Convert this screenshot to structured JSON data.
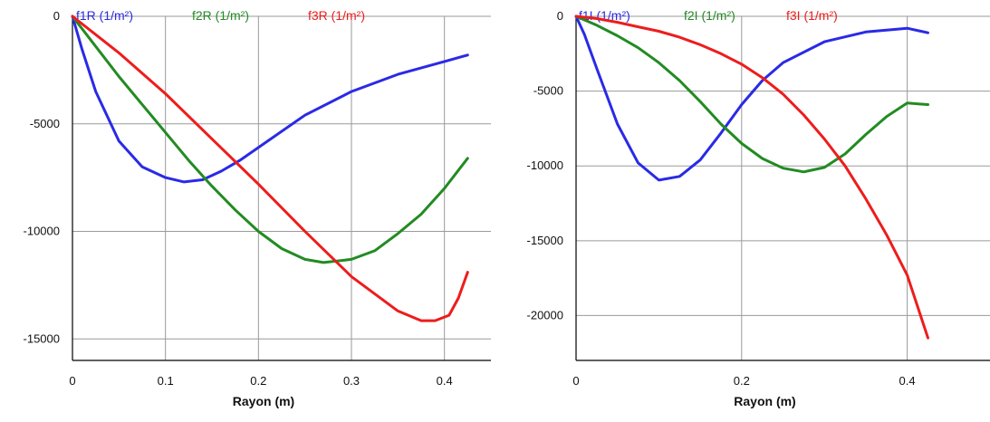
{
  "chart_data": [
    {
      "type": "line",
      "xlabel": "Rayon (m)",
      "ylabel": "",
      "xlim": [
        0,
        0.45
      ],
      "ylim": [
        -16000,
        0
      ],
      "xticks": [
        "0",
        "0.1",
        "0.2",
        "0.3",
        "0.4"
      ],
      "yticks": [
        "0",
        "-5000",
        "-10000",
        "-15000"
      ],
      "legend_position": "top",
      "grid": true,
      "series": [
        {
          "name": "f1R (1/m²)",
          "color": "#2a2ae6",
          "points": [
            [
              0,
              0
            ],
            [
              0.01,
              -1500
            ],
            [
              0.025,
              -3500
            ],
            [
              0.05,
              -5800
            ],
            [
              0.075,
              -7000
            ],
            [
              0.1,
              -7500
            ],
            [
              0.12,
              -7700
            ],
            [
              0.14,
              -7600
            ],
            [
              0.16,
              -7200
            ],
            [
              0.18,
              -6700
            ],
            [
              0.2,
              -6100
            ],
            [
              0.25,
              -4600
            ],
            [
              0.3,
              -3500
            ],
            [
              0.35,
              -2700
            ],
            [
              0.4,
              -2100
            ],
            [
              0.425,
              -1800
            ]
          ]
        },
        {
          "name": "f2R (1/m²)",
          "color": "#228b22",
          "points": [
            [
              0,
              0
            ],
            [
              0.025,
              -1400
            ],
            [
              0.05,
              -2800
            ],
            [
              0.075,
              -4100
            ],
            [
              0.1,
              -5400
            ],
            [
              0.125,
              -6700
            ],
            [
              0.15,
              -7900
            ],
            [
              0.175,
              -9000
            ],
            [
              0.2,
              -10000
            ],
            [
              0.225,
              -10800
            ],
            [
              0.25,
              -11300
            ],
            [
              0.27,
              -11450
            ],
            [
              0.3,
              -11300
            ],
            [
              0.325,
              -10900
            ],
            [
              0.35,
              -10100
            ],
            [
              0.375,
              -9200
            ],
            [
              0.4,
              -8000
            ],
            [
              0.425,
              -6600
            ]
          ]
        },
        {
          "name": "f3R (1/m²)",
          "color": "#ee1c1c",
          "points": [
            [
              0,
              0
            ],
            [
              0.05,
              -1700
            ],
            [
              0.1,
              -3600
            ],
            [
              0.15,
              -5700
            ],
            [
              0.2,
              -7800
            ],
            [
              0.25,
              -10000
            ],
            [
              0.3,
              -12100
            ],
            [
              0.35,
              -13700
            ],
            [
              0.375,
              -14150
            ],
            [
              0.39,
              -14150
            ],
            [
              0.405,
              -13900
            ],
            [
              0.415,
              -13100
            ],
            [
              0.425,
              -11900
            ]
          ]
        }
      ]
    },
    {
      "type": "line",
      "xlabel": "Rayon (m)",
      "ylabel": "",
      "xlim": [
        0,
        0.5
      ],
      "ylim": [
        -23000,
        0
      ],
      "xticks": [
        "0",
        "0.2",
        "0.4"
      ],
      "yticks": [
        "0",
        "-5000",
        "-10000",
        "-15000",
        "-20000"
      ],
      "legend_position": "top",
      "grid": true,
      "series": [
        {
          "name": "f1I (1/m²)",
          "color": "#2a2ae6",
          "points": [
            [
              0,
              0
            ],
            [
              0.01,
              -1200
            ],
            [
              0.025,
              -3500
            ],
            [
              0.05,
              -7200
            ],
            [
              0.075,
              -9800
            ],
            [
              0.1,
              -10950
            ],
            [
              0.125,
              -10700
            ],
            [
              0.15,
              -9600
            ],
            [
              0.175,
              -7800
            ],
            [
              0.2,
              -5900
            ],
            [
              0.225,
              -4300
            ],
            [
              0.25,
              -3100
            ],
            [
              0.3,
              -1700
            ],
            [
              0.35,
              -1050
            ],
            [
              0.4,
              -800
            ],
            [
              0.425,
              -1100
            ]
          ]
        },
        {
          "name": "f2I (1/m²)",
          "color": "#228b22",
          "points": [
            [
              0,
              0
            ],
            [
              0.025,
              -600
            ],
            [
              0.05,
              -1300
            ],
            [
              0.075,
              -2100
            ],
            [
              0.1,
              -3100
            ],
            [
              0.125,
              -4300
            ],
            [
              0.15,
              -5700
            ],
            [
              0.175,
              -7200
            ],
            [
              0.2,
              -8500
            ],
            [
              0.225,
              -9500
            ],
            [
              0.25,
              -10150
            ],
            [
              0.275,
              -10400
            ],
            [
              0.3,
              -10100
            ],
            [
              0.325,
              -9200
            ],
            [
              0.35,
              -7900
            ],
            [
              0.375,
              -6700
            ],
            [
              0.4,
              -5800
            ],
            [
              0.425,
              -5900
            ]
          ]
        },
        {
          "name": "f3I (1/m²)",
          "color": "#ee1c1c",
          "points": [
            [
              0,
              0
            ],
            [
              0.025,
              -150
            ],
            [
              0.05,
              -400
            ],
            [
              0.075,
              -700
            ],
            [
              0.1,
              -1000
            ],
            [
              0.125,
              -1400
            ],
            [
              0.15,
              -1900
            ],
            [
              0.175,
              -2500
            ],
            [
              0.2,
              -3200
            ],
            [
              0.225,
              -4100
            ],
            [
              0.25,
              -5200
            ],
            [
              0.275,
              -6600
            ],
            [
              0.3,
              -8200
            ],
            [
              0.325,
              -10000
            ],
            [
              0.35,
              -12200
            ],
            [
              0.375,
              -14600
            ],
            [
              0.4,
              -17300
            ],
            [
              0.425,
              -21500
            ]
          ]
        }
      ]
    }
  ]
}
